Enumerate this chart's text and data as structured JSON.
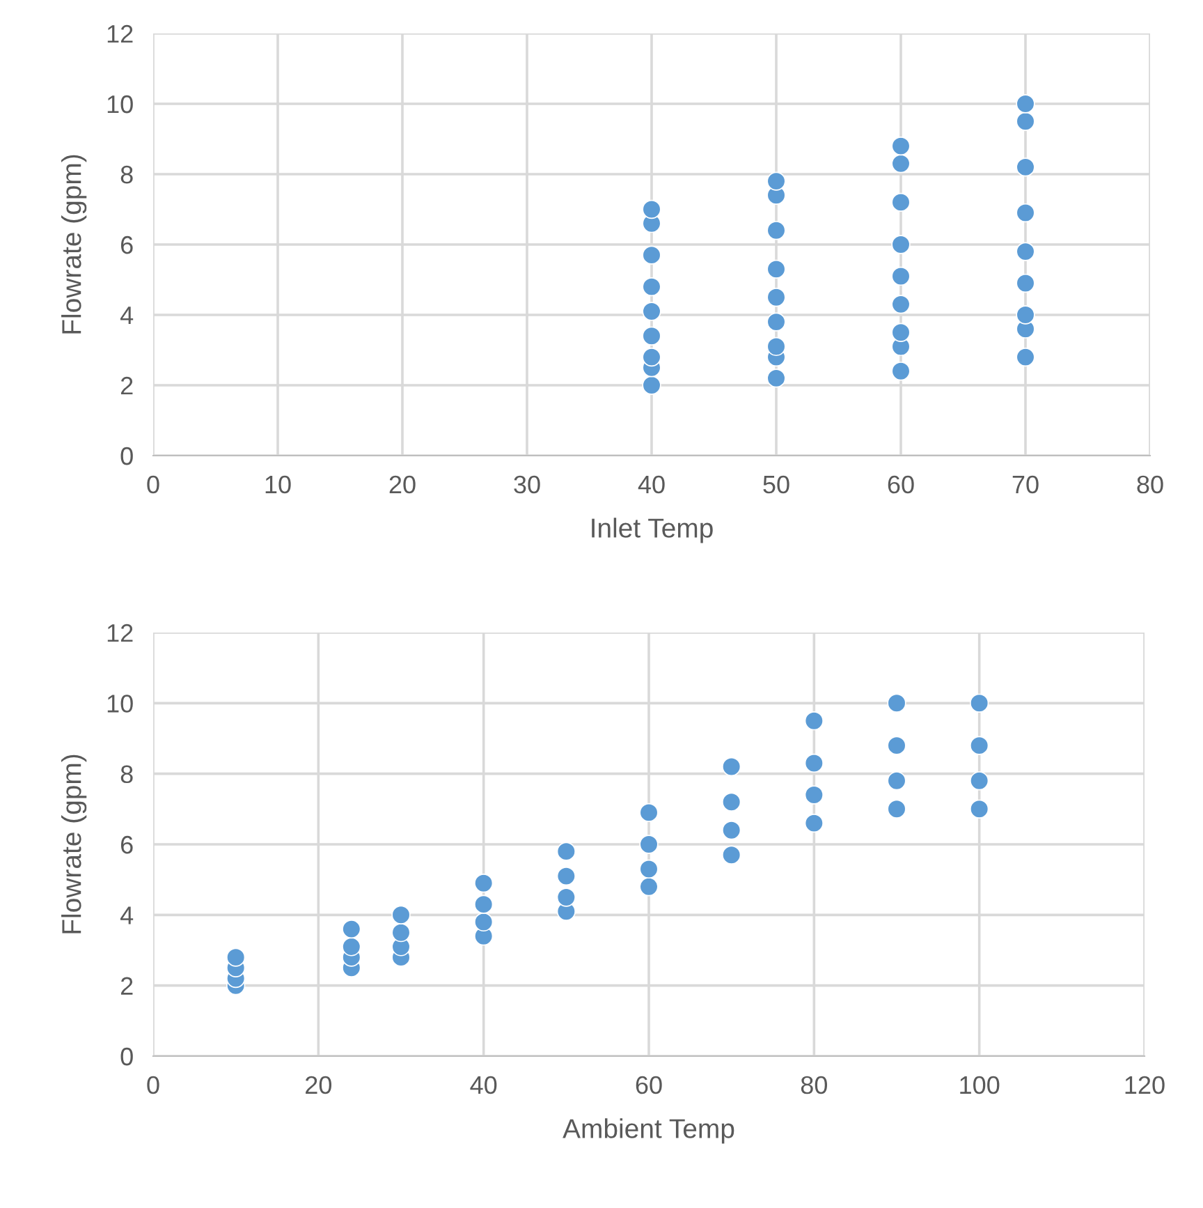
{
  "chart_data": [
    {
      "type": "scatter",
      "xlabel": "Inlet Temp",
      "ylabel": "Flowrate (gpm)",
      "xlim": [
        0,
        80
      ],
      "xticks": [
        0,
        10,
        20,
        30,
        40,
        50,
        60,
        70,
        80
      ],
      "ylim": [
        0,
        12
      ],
      "yticks": [
        0,
        2,
        4,
        6,
        8,
        10,
        12
      ],
      "grid": true,
      "legend": false,
      "marker": "circle",
      "series": [
        {
          "color": "#5b9bd5",
          "x": [
            40,
            40,
            40,
            40,
            40,
            40,
            40,
            40,
            40,
            50,
            50,
            50,
            50,
            50,
            50,
            50,
            50,
            50,
            60,
            60,
            60,
            60,
            60,
            60,
            60,
            60,
            60,
            70,
            70,
            70,
            70,
            70,
            70,
            70,
            70,
            70
          ],
          "values": [
            2.0,
            2.5,
            2.8,
            3.4,
            4.1,
            4.8,
            5.7,
            6.6,
            7.0,
            2.2,
            2.8,
            3.1,
            3.8,
            4.5,
            5.3,
            6.4,
            7.4,
            7.8,
            2.4,
            3.1,
            3.5,
            4.3,
            5.1,
            6.0,
            7.2,
            8.3,
            8.8,
            2.8,
            3.6,
            4.0,
            4.9,
            5.8,
            6.9,
            8.2,
            9.5,
            10.0
          ]
        }
      ]
    },
    {
      "type": "scatter",
      "xlabel": "Ambient Temp",
      "ylabel": "Flowrate (gpm)",
      "xlim": [
        0,
        120
      ],
      "xticks": [
        0,
        20,
        40,
        60,
        80,
        100,
        120
      ],
      "ylim": [
        0,
        12
      ],
      "yticks": [
        0,
        2,
        4,
        6,
        8,
        10,
        12
      ],
      "grid": true,
      "legend": false,
      "marker": "circle",
      "series": [
        {
          "color": "#5b9bd5",
          "x": [
            10,
            10,
            10,
            10,
            24,
            24,
            24,
            24,
            30,
            30,
            30,
            30,
            40,
            40,
            40,
            40,
            50,
            50,
            50,
            50,
            60,
            60,
            60,
            60,
            70,
            70,
            70,
            70,
            80,
            80,
            80,
            80,
            90,
            90,
            90,
            90,
            100,
            100,
            100,
            100
          ],
          "values": [
            2.0,
            2.2,
            2.5,
            2.8,
            2.5,
            2.8,
            3.1,
            3.6,
            2.8,
            3.1,
            3.5,
            4.0,
            3.4,
            3.8,
            4.3,
            4.9,
            4.1,
            4.5,
            5.1,
            5.8,
            4.8,
            5.3,
            6.0,
            6.9,
            5.7,
            6.4,
            7.2,
            8.2,
            6.6,
            7.4,
            8.3,
            9.5,
            7.0,
            7.8,
            8.8,
            10.0,
            7.0,
            7.8,
            8.8,
            10.0
          ]
        }
      ]
    }
  ]
}
